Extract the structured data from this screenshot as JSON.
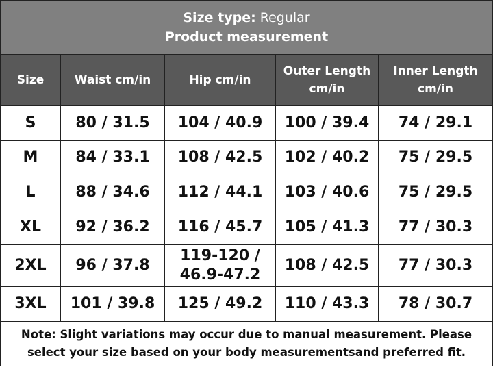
{
  "header": {
    "label": "Size type:",
    "value": "Regular",
    "subtitle": "Product measurement"
  },
  "table": {
    "columns": [
      "Size",
      "Waist cm/in",
      "Hip cm/in",
      "Outer Length cm/in",
      "Inner Length cm/in"
    ],
    "rows": [
      [
        "S",
        "80 / 31.5",
        "104 / 40.9",
        "100 / 39.4",
        "74 / 29.1"
      ],
      [
        "M",
        "84 / 33.1",
        "108 / 42.5",
        "102 / 40.2",
        "75 / 29.5"
      ],
      [
        "L",
        "88 / 34.6",
        "112 / 44.1",
        "103 / 40.6",
        "75 / 29.5"
      ],
      [
        "XL",
        "92 / 36.2",
        "116 / 45.7",
        "105 / 41.3",
        "77 / 30.3"
      ],
      [
        "2XL",
        "96 / 37.8",
        "119-120 / 46.9-47.2",
        "108 / 42.5",
        "77 / 30.3"
      ],
      [
        "3XL",
        "101 / 39.8",
        "125 / 49.2",
        "110 / 43.3",
        "78 / 30.7"
      ]
    ]
  },
  "note": "Note: Slight variations may occur due to manual measurement. Please select your size based on your body measurementsand preferred fit."
}
